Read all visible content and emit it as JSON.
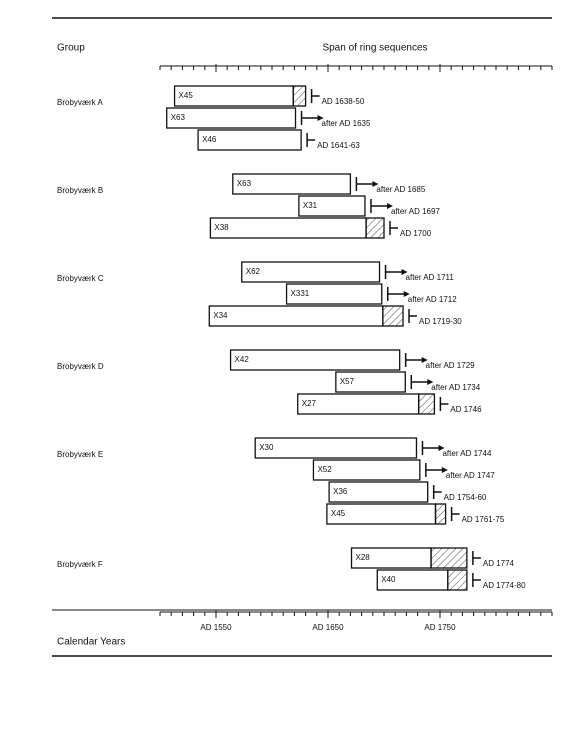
{
  "chart_data": {
    "type": "range",
    "group_header": "Group",
    "span_header": "Span of ring sequences",
    "x_label": "Calendar Years",
    "xlim": [
      1500,
      1850
    ],
    "xticks": [
      {
        "value": 1550,
        "label": "AD 1550"
      },
      {
        "value": 1650,
        "label": "AD 1650"
      },
      {
        "value": 1750,
        "label": "AD 1750"
      }
    ],
    "groups": [
      {
        "name": "Brobyværk A",
        "samples": [
          {
            "id": "X45",
            "start": 1513,
            "end": 1619,
            "sapwood_end": 1630,
            "label": "AD 1638-50"
          },
          {
            "id": "X63",
            "start": 1506,
            "end": 1621,
            "label": "after AD 1635"
          },
          {
            "id": "X46",
            "start": 1534,
            "end": 1626,
            "label": "AD 1641-63"
          }
        ]
      },
      {
        "name": "Brobyværk B",
        "samples": [
          {
            "id": "X63",
            "start": 1565,
            "end": 1670,
            "label": "after AD 1685"
          },
          {
            "id": "X31",
            "start": 1624,
            "end": 1683,
            "label": "after AD 1697"
          },
          {
            "id": "X38",
            "start": 1545,
            "end": 1684,
            "sapwood_end": 1700,
            "label": "AD 1700"
          }
        ]
      },
      {
        "name": "Brobyværk C",
        "samples": [
          {
            "id": "X62",
            "start": 1573,
            "end": 1696,
            "label": "after AD 1711"
          },
          {
            "id": "X331",
            "start": 1613,
            "end": 1698,
            "label": "after AD 1712"
          },
          {
            "id": "X34",
            "start": 1544,
            "end": 1699,
            "sapwood_end": 1717,
            "label": "AD 1719-30"
          }
        ]
      },
      {
        "name": "Brobyværk D",
        "samples": [
          {
            "id": "X42",
            "start": 1563,
            "end": 1714,
            "label": "after AD 1729"
          },
          {
            "id": "X57",
            "start": 1657,
            "end": 1719,
            "label": "after AD 1734"
          },
          {
            "id": "X27",
            "start": 1623,
            "end": 1731,
            "sapwood_end": 1745,
            "label": "AD 1746"
          }
        ]
      },
      {
        "name": "Brobyværk E",
        "samples": [
          {
            "id": "X30",
            "start": 1585,
            "end": 1729,
            "label": "after AD 1744"
          },
          {
            "id": "X52",
            "start": 1637,
            "end": 1732,
            "label": "after AD 1747"
          },
          {
            "id": "X36",
            "start": 1651,
            "end": 1739,
            "label": "AD 1754-60"
          },
          {
            "id": "X45",
            "start": 1649,
            "end": 1746,
            "sapwood_end": 1755,
            "label": "AD 1761-75"
          }
        ]
      },
      {
        "name": "Brobyværk F",
        "samples": [
          {
            "id": "X28",
            "start": 1671,
            "end": 1742,
            "sapwood_end": 1774,
            "label": "AD 1774"
          },
          {
            "id": "X40",
            "start": 1694,
            "end": 1757,
            "sapwood_end": 1774,
            "label": "AD 1774-80"
          }
        ]
      }
    ]
  }
}
